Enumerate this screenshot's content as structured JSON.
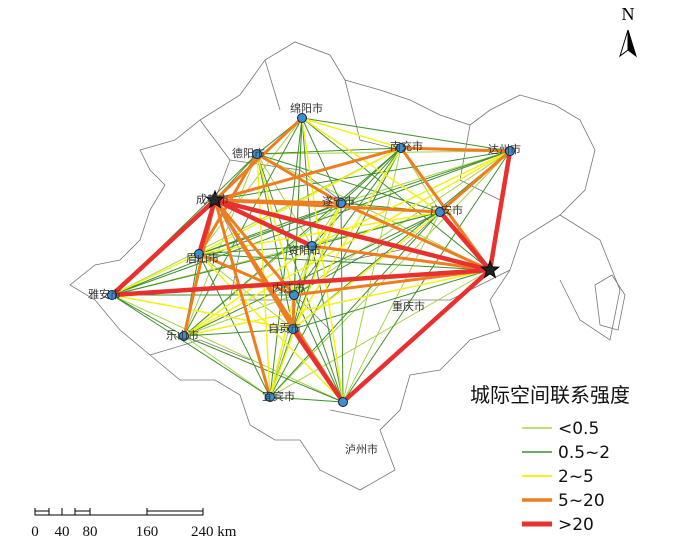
{
  "north": "N",
  "cities": [
    {
      "label": "绵阳市"
    },
    {
      "label": "德阳市"
    },
    {
      "label": "南充市"
    },
    {
      "label": "达州市"
    },
    {
      "label": "成都市"
    },
    {
      "label": "遂宁市"
    },
    {
      "label": "广安市"
    },
    {
      "label": "资阳市"
    },
    {
      "label": "眉山市"
    },
    {
      "label": "内江市"
    },
    {
      "label": "雅安市"
    },
    {
      "label": "乐山市"
    },
    {
      "label": "自贡市"
    },
    {
      "label": "宜宾市"
    },
    {
      "label": "泸州市"
    },
    {
      "label": "重庆市"
    }
  ],
  "legend": {
    "title": "城际空间联系强度",
    "items": [
      "<0.5",
      "0.5~2",
      "2~5",
      "5~20",
      ">20"
    ]
  },
  "scale": {
    "labels": [
      "0",
      "40",
      "80",
      "160",
      "240 km"
    ]
  }
}
